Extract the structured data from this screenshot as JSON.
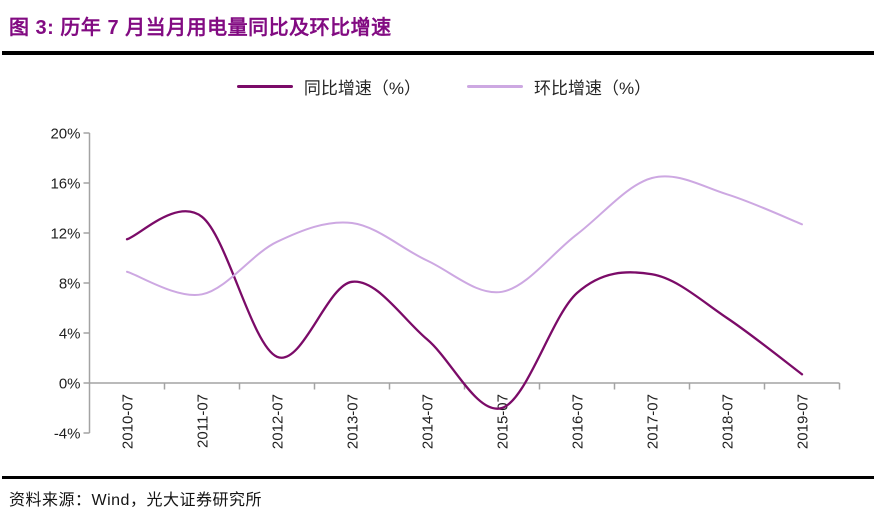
{
  "header": {
    "title": "图 3: 历年 7 月当月用电量同比及环比增速"
  },
  "footer": {
    "source": "资料来源：Wind，光大证券研究所"
  },
  "colors": {
    "title": "#820b82",
    "axis": "#a3a3a3",
    "tick_text": "#1f1f1f",
    "rule": "#000000",
    "series_yoy": "#7b0b68",
    "series_mom": "#cda8e2"
  },
  "chart_data": {
    "type": "line",
    "title": "历年 7 月当月用电量同比及环比增速",
    "smooth": true,
    "grid": false,
    "legend_position": "top",
    "categories": [
      "2010-07",
      "2011-07",
      "2012-07",
      "2013-07",
      "2014-07",
      "2015-07",
      "2016-07",
      "2017-07",
      "2018-07",
      "2019-07"
    ],
    "series": [
      {
        "name": "同比增速（%）",
        "color": "#7b0b68",
        "values": [
          11.5,
          13.3,
          2.1,
          8.1,
          3.5,
          -2.0,
          7.2,
          8.7,
          5.2,
          0.7
        ]
      },
      {
        "name": "环比增速（%）",
        "color": "#cda8e2",
        "values": [
          8.9,
          7.1,
          11.3,
          12.8,
          9.8,
          7.3,
          11.9,
          16.4,
          15.1,
          12.7
        ]
      }
    ],
    "xlabel": "",
    "ylabel": "",
    "ylim": [
      -4,
      20
    ],
    "yticks": {
      "values": [
        20,
        16,
        12,
        8,
        4,
        0,
        -4
      ],
      "labels": [
        "20%",
        "16%",
        "12%",
        "8%",
        "4%",
        "0%",
        "-4%"
      ]
    }
  }
}
